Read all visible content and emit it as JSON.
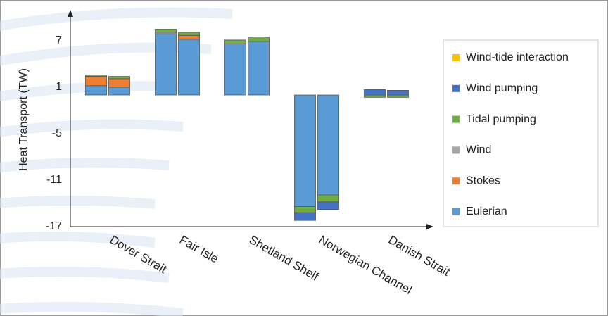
{
  "chart_data": {
    "type": "grouped_stacked_bar",
    "y_label": "Heat Transport (TW)",
    "categories": [
      "Dover Strait",
      "Fair Isle",
      "Shetland Shelf",
      "Norwegian Channel",
      "Danish Strait"
    ],
    "ylim": [
      -17,
      10.5
    ],
    "yticks": [
      7,
      1,
      -5,
      -11,
      -17
    ],
    "series": [
      {
        "name": "Wind-tide interaction",
        "color": "#ffc000",
        "values": [
          [
            0,
            0
          ],
          [
            0,
            0
          ],
          [
            0,
            0
          ],
          [
            0,
            0
          ],
          [
            0,
            0
          ]
        ]
      },
      {
        "name": "Wind pumping",
        "color": "#4472c4",
        "values": [
          [
            0,
            0
          ],
          [
            0,
            0
          ],
          [
            0,
            0
          ],
          [
            -1.0,
            -1.0
          ],
          [
            0.7,
            0.6
          ]
        ]
      },
      {
        "name": "Tidal pumping",
        "color": "#70ad47",
        "values": [
          [
            0.2,
            0.3
          ],
          [
            0.4,
            0.4
          ],
          [
            0.5,
            0.6
          ],
          [
            -0.8,
            -0.9
          ],
          [
            -0.3,
            -0.3
          ]
        ]
      },
      {
        "name": "Wind",
        "color": "#a5a5a5",
        "values": [
          [
            0,
            0
          ],
          [
            0.2,
            0
          ],
          [
            0,
            0
          ],
          [
            0,
            0
          ],
          [
            0,
            0
          ]
        ]
      },
      {
        "name": "Stokes",
        "color": "#ed7d31",
        "values": [
          [
            1.2,
            1.1
          ],
          [
            0,
            0.5
          ],
          [
            0,
            0
          ],
          [
            0,
            0
          ],
          [
            0,
            0
          ]
        ]
      },
      {
        "name": "Eulerian",
        "color": "#5b9bd5",
        "values": [
          [
            1.2,
            1.0
          ],
          [
            7.9,
            7.2
          ],
          [
            6.6,
            6.9
          ],
          [
            -14.4,
            -12.9
          ],
          [
            0,
            0
          ]
        ]
      }
    ]
  }
}
